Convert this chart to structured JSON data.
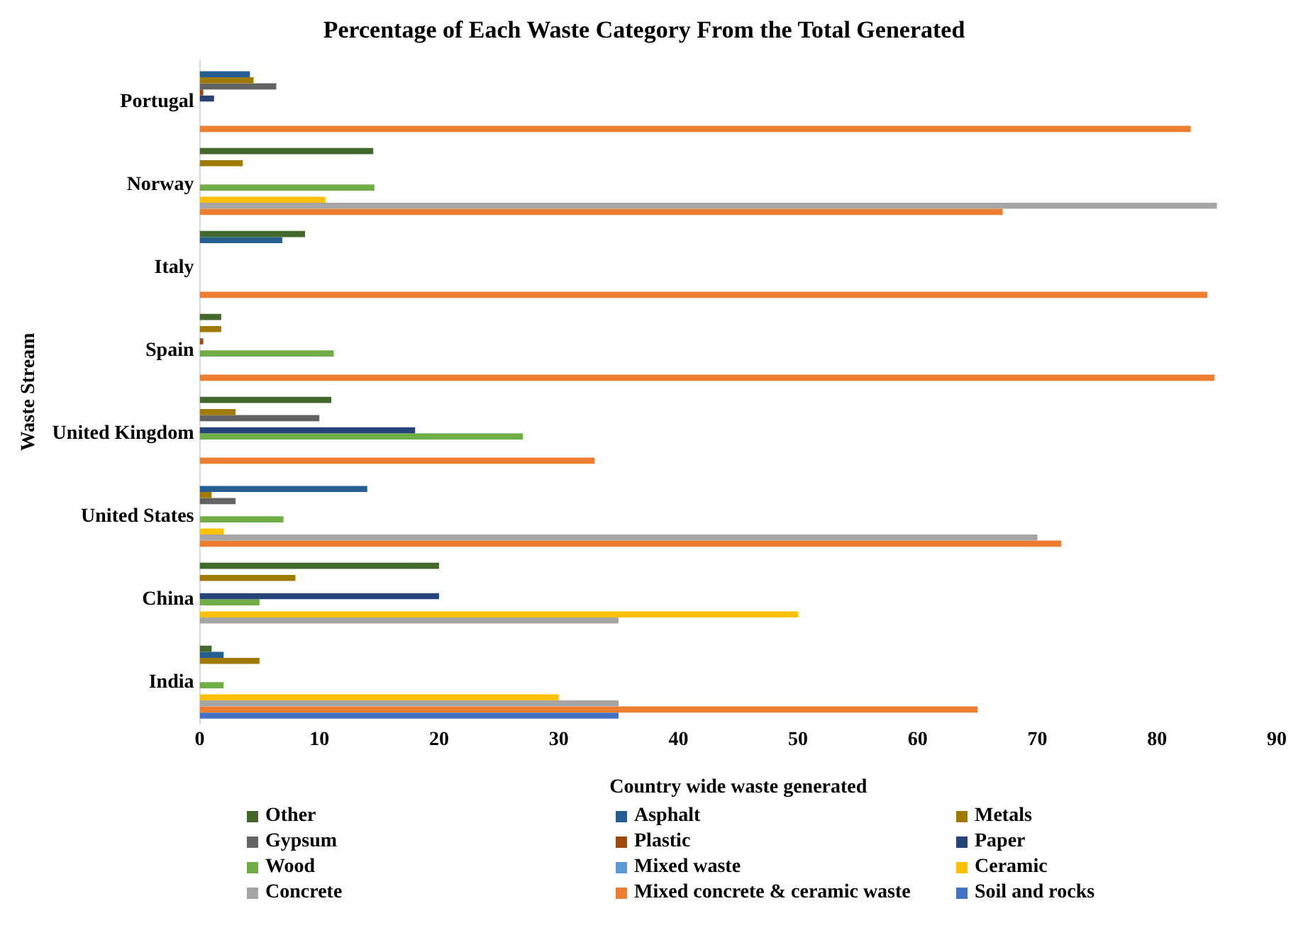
{
  "chart_data": {
    "type": "bar",
    "orientation": "horizontal",
    "title": "Percentage of Each Waste Category From the Total Generated",
    "xlabel": "Country wide waste generated",
    "ylabel": "Waste Stream",
    "categories": [
      "Portugal",
      "Norway",
      "Italy",
      "Spain",
      "United Kingdom",
      "United States",
      "China",
      "India"
    ],
    "xlim": [
      0,
      90
    ],
    "xticks": [
      0,
      10,
      20,
      30,
      40,
      50,
      60,
      70,
      80,
      90
    ],
    "grid": false,
    "legend": "bottom",
    "series": [
      {
        "name": "Other",
        "color": "#43682b",
        "values": [
          null,
          14.5,
          8.8,
          1.8,
          11,
          null,
          20,
          1
        ]
      },
      {
        "name": "Asphalt",
        "color": "#255e91",
        "values": [
          4.2,
          null,
          6.9,
          null,
          null,
          14,
          null,
          2
        ]
      },
      {
        "name": "Metals",
        "color": "#9e7b00",
        "values": [
          4.5,
          3.6,
          null,
          1.8,
          3,
          1,
          8,
          5
        ]
      },
      {
        "name": "Gypsum",
        "color": "#636363",
        "values": [
          6.4,
          null,
          null,
          null,
          10,
          3,
          null,
          null
        ]
      },
      {
        "name": "Plastic",
        "color": "#9e480e",
        "values": [
          0.3,
          null,
          null,
          0.3,
          null,
          null,
          null,
          null
        ]
      },
      {
        "name": "Paper",
        "color": "#264478",
        "values": [
          1.2,
          null,
          null,
          null,
          18,
          null,
          20,
          null
        ]
      },
      {
        "name": "Wood",
        "color": "#70ad47",
        "values": [
          null,
          14.6,
          null,
          11.2,
          27,
          7,
          5,
          2
        ]
      },
      {
        "name": "Mixed waste",
        "color": "#5b9bd5",
        "values": [
          null,
          null,
          null,
          null,
          null,
          null,
          null,
          null
        ]
      },
      {
        "name": "Ceramic",
        "color": "#ffc000",
        "values": [
          null,
          10.5,
          null,
          null,
          null,
          2,
          50,
          30
        ]
      },
      {
        "name": "Concrete",
        "color": "#a5a5a5",
        "values": [
          null,
          85,
          null,
          null,
          null,
          70,
          35,
          35
        ]
      },
      {
        "name": "Mixed concrete & ceramic waste",
        "color": "#ed7d31",
        "values": [
          82.8,
          67.1,
          84.2,
          84.8,
          33,
          72,
          null,
          65
        ]
      },
      {
        "name": "Soil and rocks",
        "color": "#4472c4",
        "values": [
          null,
          null,
          null,
          null,
          null,
          null,
          null,
          35
        ]
      }
    ]
  }
}
